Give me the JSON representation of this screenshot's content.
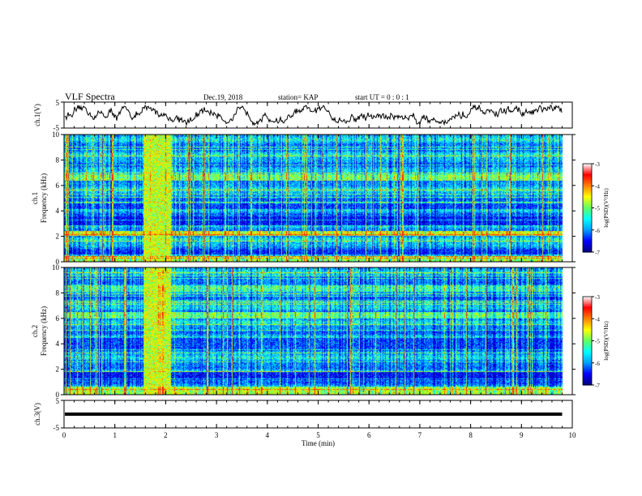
{
  "header": {
    "title": "VLF Spectra",
    "date": "Dec.19, 2018",
    "station": "station= KAP",
    "start": "start  UT =  0 : 0 : 1"
  },
  "chart_data": {
    "type": "heatmap",
    "title": "VLF Spectra",
    "x_axis": {
      "label": "Time  (min)",
      "range": [
        0,
        10
      ],
      "ticks": [
        "0",
        "1",
        "2",
        "3",
        "4",
        "5",
        "6",
        "7",
        "8",
        "9",
        "10"
      ]
    },
    "waveform_top": {
      "label": "ch.1(V)",
      "range": [
        -5,
        5
      ],
      "ticks": [
        "5",
        "-5"
      ],
      "data_end_min": 9.8
    },
    "spectrogram_1": {
      "label": "ch.1",
      "ylabel": "Frequency  (kHz)",
      "range": [
        0,
        10
      ],
      "ticks": [
        "0",
        "2",
        "4",
        "6",
        "8",
        "10"
      ],
      "data_end_min": 9.8,
      "burst_interval_min": [
        1.55,
        2.1
      ]
    },
    "spectrogram_2": {
      "label": "ch.2",
      "ylabel": "Frequency  (kHz)",
      "range": [
        0,
        10
      ],
      "ticks": [
        "0",
        "2",
        "4",
        "6",
        "8",
        "10"
      ],
      "data_end_min": 9.8,
      "burst_interval_min": [
        1.55,
        2.1
      ]
    },
    "waveform_bottom": {
      "label": "ch.3(V)",
      "range": [
        -5,
        5
      ],
      "ticks": [
        "5",
        "-5"
      ],
      "constant_value_v": 0,
      "data_end_min": 9.8
    },
    "colorbar": {
      "label": "log(PSD)(V²/Hz)",
      "range": [
        -7,
        -3
      ],
      "ticks": [
        "-3",
        "-4",
        "-5",
        "-6",
        "-7"
      ],
      "colors": [
        "#000080",
        "#0000ff",
        "#00a0ff",
        "#00ffff",
        "#60ff60",
        "#ffff00",
        "#ff8000",
        "#ff0000",
        "#ffffff"
      ]
    }
  }
}
